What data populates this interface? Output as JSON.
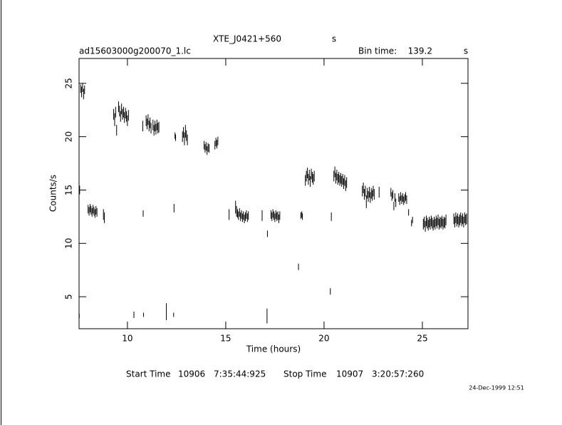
{
  "chart_data": {
    "type": "errorbar",
    "title": "XTE_J0421+560",
    "title_unit": "s",
    "file": "ad15603000g200070_1.lc",
    "bin_time_label": "Bin time:",
    "bin_time": 139.2,
    "bin_time_unit": "s",
    "x_label": "Time (hours)",
    "y_label": "Counts/s",
    "start_label": "Start Time",
    "start_day": "10906",
    "start_time": "7:35:44:925",
    "stop_label": "Stop Time",
    "stop_day": "10907",
    "stop_time": "3:20:57:260",
    "date": "24-Dec-1999 12:51",
    "color": "#000000",
    "xlim": [
      7.54,
      27.32
    ],
    "xticks": [
      10,
      15,
      20,
      25
    ],
    "ylim": [
      2,
      27.33
    ],
    "yticks": [
      5,
      10,
      15,
      20,
      25
    ],
    "x": [
      7.55,
      7.57,
      7.62,
      7.67,
      7.72,
      7.77,
      7.82,
      8.0,
      8.05,
      8.1,
      8.15,
      8.2,
      8.25,
      8.3,
      8.35,
      8.4,
      8.45,
      8.78,
      8.83,
      9.3,
      9.35,
      9.4,
      9.45,
      9.55,
      9.6,
      9.65,
      9.7,
      9.75,
      9.8,
      9.85,
      9.9,
      9.95,
      10.0,
      10.05,
      10.33,
      10.78,
      10.8,
      10.82,
      10.95,
      11.0,
      11.05,
      11.1,
      11.15,
      11.2,
      11.3,
      11.35,
      11.4,
      11.45,
      11.5,
      11.55,
      11.6,
      11.98,
      12.35,
      12.37,
      12.42,
      12.45,
      12.8,
      12.85,
      12.9,
      12.95,
      13.0,
      13.05,
      13.9,
      13.95,
      14.0,
      14.05,
      14.1,
      14.15,
      14.45,
      14.5,
      14.55,
      14.6,
      15.17,
      15.5,
      15.55,
      15.6,
      15.65,
      15.7,
      15.75,
      15.8,
      15.85,
      15.9,
      15.95,
      16.0,
      16.05,
      16.1,
      16.15,
      16.85,
      17.1,
      17.12,
      17.3,
      17.35,
      17.4,
      17.45,
      17.5,
      17.55,
      17.6,
      17.65,
      17.7,
      17.75,
      18.7,
      18.82,
      18.87,
      18.9,
      19.05,
      19.1,
      19.15,
      19.2,
      19.25,
      19.3,
      19.35,
      19.4,
      19.45,
      19.5,
      20.32,
      20.37,
      20.5,
      20.55,
      20.6,
      20.65,
      20.7,
      20.75,
      20.8,
      20.85,
      20.9,
      20.95,
      21.0,
      21.05,
      21.1,
      21.15,
      21.95,
      22.0,
      22.05,
      22.1,
      22.15,
      22.2,
      22.25,
      22.3,
      22.35,
      22.4,
      22.45,
      22.5,
      22.55,
      22.8,
      23.4,
      23.45,
      23.5,
      23.55,
      23.6,
      23.65,
      23.8,
      23.85,
      23.9,
      23.95,
      24.0,
      24.05,
      24.1,
      24.15,
      24.2,
      24.3,
      24.45,
      24.5,
      25.05,
      25.1,
      25.15,
      25.2,
      25.25,
      25.3,
      25.35,
      25.4,
      25.45,
      25.5,
      25.55,
      25.6,
      25.65,
      25.7,
      25.75,
      25.8,
      25.85,
      25.9,
      25.95,
      26.0,
      26.05,
      26.1,
      26.15,
      26.2,
      26.6,
      26.65,
      26.7,
      26.75,
      26.8,
      26.85,
      26.9,
      26.95,
      27.0,
      27.05,
      27.1,
      27.15,
      27.2,
      27.25
    ],
    "values": [
      3.2,
      15.0,
      24.5,
      24.2,
      24.6,
      24.0,
      24.4,
      13.2,
      13.0,
      13.3,
      13.1,
      12.9,
      13.2,
      13.0,
      12.8,
      13.1,
      12.9,
      12.7,
      12.4,
      22.1,
      21.6,
      22.3,
      20.6,
      22.8,
      22.4,
      21.9,
      22.6,
      22.1,
      22.3,
      21.8,
      22.2,
      21.9,
      21.5,
      22.0,
      3.3,
      21.0,
      12.8,
      3.3,
      21.5,
      21.2,
      21.6,
      21.0,
      21.3,
      20.8,
      21.1,
      20.6,
      21.0,
      20.7,
      21.1,
      20.8,
      20.9,
      3.6,
      3.3,
      13.3,
      20.1,
      19.9,
      20.0,
      20.4,
      19.8,
      20.5,
      20.1,
      19.7,
      19.2,
      18.9,
      19.1,
      18.7,
      19.0,
      18.9,
      19.2,
      19.5,
      19.3,
      19.6,
      12.7,
      13.4,
      13.0,
      12.8,
      12.6,
      12.9,
      12.5,
      12.7,
      12.4,
      12.6,
      12.3,
      12.5,
      12.7,
      12.4,
      12.6,
      12.6,
      3.2,
      10.9,
      12.7,
      12.5,
      12.8,
      12.6,
      12.4,
      12.7,
      12.5,
      12.6,
      12.3,
      12.6,
      7.8,
      12.6,
      12.7,
      12.5,
      15.9,
      16.3,
      16.6,
      16.0,
      16.4,
      15.8,
      16.5,
      16.2,
      16.0,
      16.3,
      5.5,
      12.5,
      16.3,
      16.7,
      16.1,
      16.4,
      16.0,
      16.2,
      15.9,
      16.1,
      15.8,
      16.0,
      15.6,
      15.9,
      15.4,
      15.7,
      14.9,
      15.2,
      14.6,
      14.9,
      13.9,
      14.7,
      14.4,
      14.8,
      14.3,
      14.7,
      14.5,
      14.9,
      14.6,
      14.8,
      14.8,
      14.4,
      14.6,
      13.5,
      14.3,
      13.8,
      14.3,
      14.0,
      14.4,
      14.1,
      14.3,
      14.0,
      14.2,
      14.4,
      14.1,
      12.9,
      11.9,
      12.2,
      11.8,
      12.0,
      11.6,
      12.1,
      11.9,
      11.7,
      12.0,
      11.8,
      12.1,
      11.9,
      11.7,
      12.0,
      11.8,
      12.1,
      11.9,
      12.2,
      11.8,
      12.0,
      11.9,
      12.1,
      11.8,
      12.0,
      11.9,
      12.2,
      12.3,
      12.0,
      12.4,
      12.1,
      12.3,
      12.0,
      12.2,
      12.4,
      12.1,
      12.3,
      12.0,
      12.4,
      12.2,
      12.3
    ],
    "errors": [
      0.2,
      0.4,
      0.4,
      0.5,
      0.4,
      0.5,
      0.4,
      0.4,
      0.4,
      0.4,
      0.4,
      0.4,
      0.4,
      0.4,
      0.4,
      0.4,
      0.4,
      0.5,
      0.5,
      0.5,
      0.6,
      0.5,
      0.5,
      0.5,
      0.5,
      0.5,
      0.5,
      0.5,
      0.5,
      0.5,
      0.5,
      0.5,
      0.5,
      0.5,
      0.3,
      0.5,
      0.3,
      0.2,
      0.5,
      0.5,
      0.5,
      0.5,
      0.5,
      0.5,
      0.5,
      0.5,
      0.5,
      0.5,
      0.5,
      0.5,
      0.5,
      0.8,
      0.2,
      0.4,
      0.3,
      0.3,
      0.5,
      0.5,
      0.6,
      0.6,
      0.5,
      0.5,
      0.4,
      0.4,
      0.4,
      0.4,
      0.4,
      0.4,
      0.4,
      0.4,
      0.4,
      0.4,
      0.5,
      0.6,
      0.5,
      0.4,
      0.4,
      0.4,
      0.4,
      0.4,
      0.4,
      0.4,
      0.4,
      0.4,
      0.4,
      0.4,
      0.4,
      0.5,
      0.7,
      0.3,
      0.4,
      0.4,
      0.4,
      0.4,
      0.4,
      0.4,
      0.4,
      0.4,
      0.4,
      0.4,
      0.3,
      0.3,
      0.3,
      0.3,
      0.5,
      0.5,
      0.5,
      0.5,
      0.5,
      0.5,
      0.5,
      0.5,
      0.5,
      0.5,
      0.3,
      0.4,
      0.5,
      0.5,
      0.5,
      0.5,
      0.5,
      0.5,
      0.5,
      0.5,
      0.5,
      0.5,
      0.5,
      0.5,
      0.5,
      0.5,
      0.5,
      0.5,
      0.5,
      0.5,
      0.6,
      0.5,
      0.5,
      0.5,
      0.5,
      0.5,
      0.5,
      0.5,
      0.5,
      0.5,
      0.4,
      0.4,
      0.4,
      0.4,
      0.4,
      0.4,
      0.4,
      0.4,
      0.4,
      0.4,
      0.4,
      0.4,
      0.4,
      0.4,
      0.4,
      0.3,
      0.3,
      0.3,
      0.5,
      0.5,
      0.5,
      0.5,
      0.5,
      0.5,
      0.5,
      0.5,
      0.5,
      0.5,
      0.5,
      0.5,
      0.5,
      0.5,
      0.5,
      0.5,
      0.5,
      0.5,
      0.5,
      0.5,
      0.5,
      0.5,
      0.5,
      0.5,
      0.5,
      0.5,
      0.5,
      0.5,
      0.5,
      0.5,
      0.5,
      0.5,
      0.5,
      0.5,
      0.5,
      0.5,
      0.5,
      0.5
    ]
  }
}
